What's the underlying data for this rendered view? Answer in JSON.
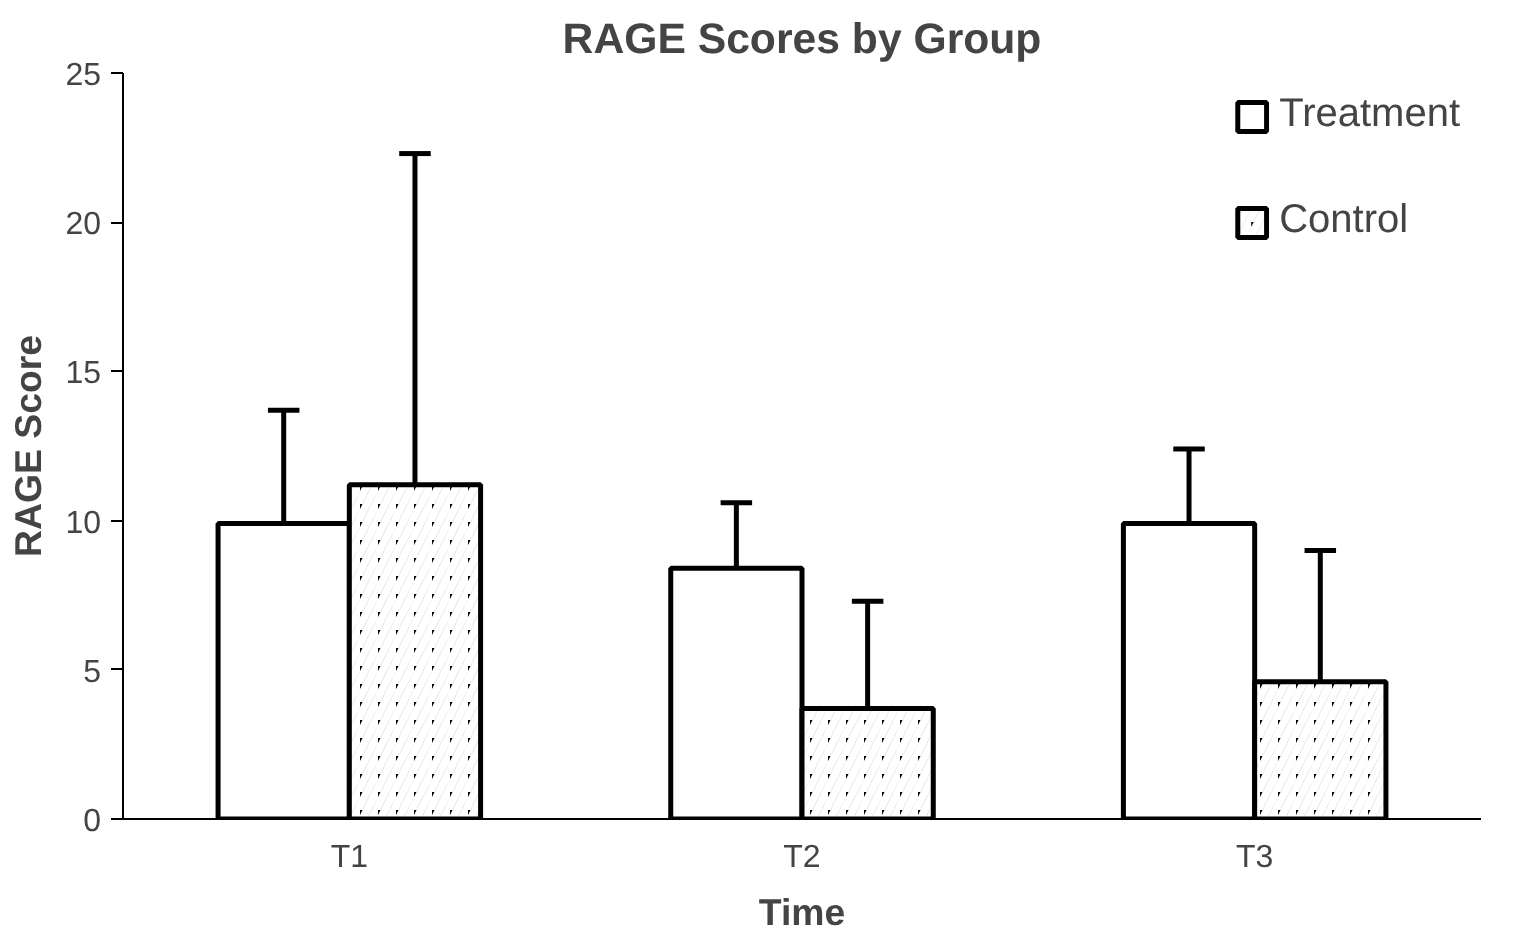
{
  "chart_data": {
    "type": "bar",
    "title": "RAGE Scores by Group",
    "xlabel": "Time",
    "ylabel": "RAGE Score",
    "categories": [
      "T1",
      "T2",
      "T3"
    ],
    "series": [
      {
        "name": "Treatment",
        "color": "#ffffff",
        "values": [
          9.9,
          8.4,
          9.9
        ],
        "errors": [
          [
            9.9,
            13.7
          ],
          [
            8.4,
            10.6
          ],
          [
            9.9,
            12.4
          ]
        ]
      },
      {
        "name": "Control",
        "color": "#000000",
        "values": [
          11.2,
          3.7,
          4.6
        ],
        "errors": [
          [
            11.2,
            22.3
          ],
          [
            3.7,
            7.3
          ],
          [
            4.6,
            9.0
          ]
        ]
      }
    ],
    "ylim": [
      0,
      25
    ],
    "yticks": [
      0,
      5,
      10,
      15,
      20,
      25
    ],
    "grid": false,
    "legend": "top right"
  }
}
